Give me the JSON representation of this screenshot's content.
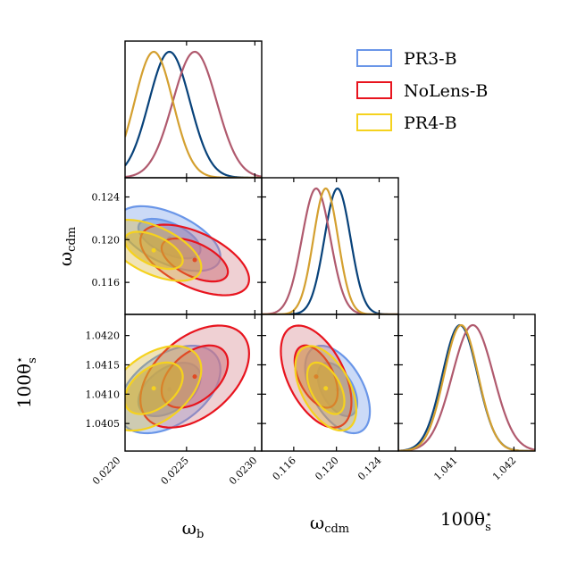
{
  "chart_data": {
    "type": "triangle-corner",
    "parameters": [
      {
        "id": "ob",
        "symbol": "ω",
        "subscript": "b",
        "range": [
          0.02205,
          0.02305
        ],
        "ticks": [
          0.022,
          0.0225,
          0.023
        ],
        "tick_labels": [
          "0.0220",
          "0.0225",
          "0.0230"
        ]
      },
      {
        "id": "oc",
        "symbol": "ω",
        "subscript": "cdm",
        "range": [
          0.113,
          0.1258
        ],
        "ticks": [
          0.116,
          0.12,
          0.124
        ],
        "tick_labels": [
          "0.116",
          "0.120",
          "0.124"
        ]
      },
      {
        "id": "th",
        "symbol": "100θ",
        "superscript": "⋆",
        "subscript": "s",
        "range": [
          1.04003,
          1.04236
        ],
        "ticks": [
          1.0405,
          1.041,
          1.0415,
          1.042
        ],
        "tick_labels": [
          "1.0405",
          "1.0410",
          "1.0415",
          "1.0420"
        ],
        "x_ticks": [
          1.041,
          1.042
        ],
        "x_tick_labels": [
          "1.041",
          "1.042"
        ]
      }
    ],
    "series": [
      {
        "name": "PR3-B",
        "legend_color": "#6a96e8",
        "line_color": "#08427a",
        "fill_color": "#6a96e8",
        "mean": {
          "ob": 0.022375,
          "oc": 0.1201,
          "th": 1.04108
        },
        "sigma": {
          "ob": 0.00015,
          "oc": 0.00122,
          "th": 0.0003
        },
        "corr": {
          "ob_oc": -0.55,
          "ob_th": 0.45,
          "oc_th": -0.5
        }
      },
      {
        "name": "NoLens-B",
        "legend_color": "#e8141e",
        "line_color": "#b05a6e",
        "fill_color": "#d07882",
        "mean": {
          "ob": 0.02256,
          "oc": 0.1181,
          "th": 1.0413
        },
        "sigma": {
          "ob": 0.00016,
          "oc": 0.00133,
          "th": 0.00035
        },
        "corr": {
          "ob_oc": -0.55,
          "ob_th": 0.45,
          "oc_th": -0.5
        }
      },
      {
        "name": "PR4-B",
        "legend_color": "#f5d21e",
        "line_color": "#d4a030",
        "fill_color": "#d4b030",
        "mean": {
          "ob": 0.02226,
          "oc": 0.119,
          "th": 1.0411
        },
        "sigma": {
          "ob": 0.00014,
          "oc": 0.00115,
          "th": 0.00029
        },
        "corr": {
          "ob_oc": -0.55,
          "ob_th": 0.45,
          "oc_th": -0.5
        }
      }
    ],
    "contour_levels": [
      "68%",
      "95%"
    ]
  },
  "labels": {
    "ob": {
      "main": "ω",
      "sub": "b"
    },
    "oc": {
      "main": "ω",
      "sub": "cdm"
    },
    "th": {
      "main": "100θ",
      "sup": "⋆",
      "sub": "s"
    }
  },
  "legend": [
    "PR3-B",
    "NoLens-B",
    "PR4-B"
  ]
}
